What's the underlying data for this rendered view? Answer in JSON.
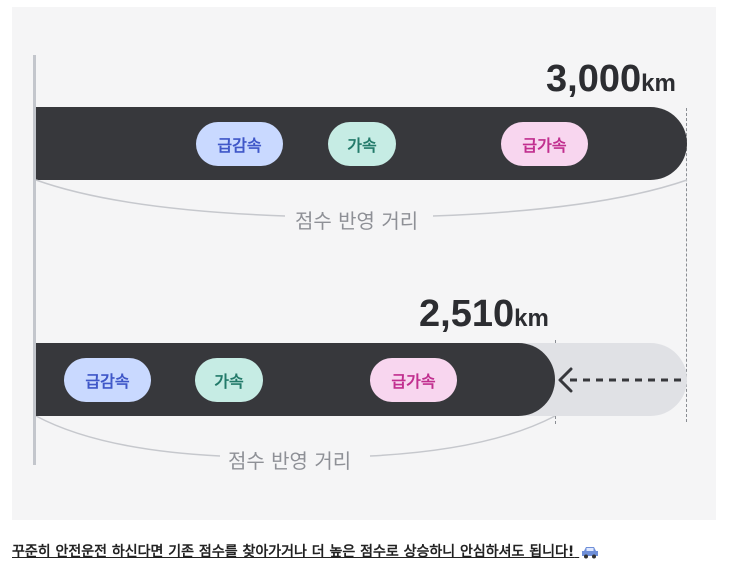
{
  "top": {
    "distance": "3,000",
    "unit": "km",
    "pills": [
      "급감속",
      "가속",
      "급가속"
    ],
    "score_label": "점수 반영 거리"
  },
  "bottom": {
    "distance": "2,510",
    "unit": "km",
    "pills": [
      "급감속",
      "가속",
      "급가속"
    ],
    "score_label": "점수 반영 거리"
  },
  "caption": "꾸준히 안전운전 하신다면 기존 점수를 찾아가거나 더 높은 점수로 상승하니 안심하셔도 됩니다!",
  "colors": {
    "bar": "#37383c",
    "ghost_bar": "#e0e1e5",
    "pill_blue": "#c9d9ff",
    "pill_teal": "#c6ece4",
    "pill_pink": "#f8d6ef"
  },
  "icons": [
    "car-icon",
    "left-arrow-icon"
  ]
}
